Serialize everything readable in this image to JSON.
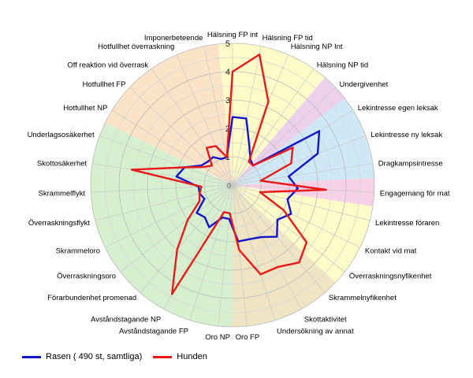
{
  "chart_data": {
    "type": "radar",
    "r_max": 5,
    "r_ticks": [
      "1",
      "2",
      "3",
      "4",
      "5"
    ],
    "categories": [
      "Hälsning FP int",
      "Hälsning FP tid",
      "Hälsning NP Int",
      "Hälsning NP tid",
      "Undergivenhet",
      "Lekintresse egen leksak",
      "Lekintresse ny leksak",
      "Dragkampsintresse",
      "Engagemang för mat",
      "Lekintresse föraren",
      "Kontakt vid mat",
      "Överraskningsnyfikenhet",
      "Skrammelnyfikenhet",
      "Skottaktivitet",
      "Undersökning av annat",
      "Oro FP",
      "Oro NP",
      "Avståndstagande FP",
      "Avståndstagande NP",
      "Förarbundenhet promenad",
      "Överraskningsoro",
      "Skrammeloro",
      "Överraskningsflykt",
      "Skrammelflykt",
      "Skottosäkerhet",
      "Underlagsosäkerhet",
      "Hotfullhet NP",
      "Hotfullhet FP",
      "Off reaktion vid överrask",
      "Hotfullhet överraskning",
      "Imponerbeteende"
    ],
    "sectors": [
      {
        "from": 0,
        "to": 3,
        "color": "#fdfbc8"
      },
      {
        "from": 4,
        "to": 4,
        "color": "#ecd0ec"
      },
      {
        "from": 5,
        "to": 7,
        "color": "#cfe8f5"
      },
      {
        "from": 8,
        "to": 8,
        "color": "#f7d2e6"
      },
      {
        "from": 9,
        "to": 11,
        "color": "#fdfbc8"
      },
      {
        "from": 12,
        "to": 15,
        "color": "#efe5c4"
      },
      {
        "from": 16,
        "to": 25,
        "color": "#d6f0cf"
      },
      {
        "from": 26,
        "to": 30,
        "color": "#fbe3c7"
      }
    ],
    "series": [
      {
        "name": "Rasen ( 490 st, samtliga)",
        "color": "#1414c8",
        "values": [
          2.4,
          2.4,
          1.5,
          1.1,
          1.0,
          3.6,
          3.2,
          2.0,
          2.3,
          2.0,
          2.3,
          2.0,
          2.4,
          2.1,
          2.0,
          2.0,
          1.2,
          1.2,
          1.7,
          1.5,
          1.6,
          1.1,
          1.2,
          1.2,
          2.0,
          1.8,
          1.3,
          1.2,
          1.2,
          1.0,
          1.0
        ]
      },
      {
        "name": "Hunden",
        "color": "#e81a1a",
        "values": [
          4.0,
          4.7,
          3.2,
          1.0,
          1.0,
          2.5,
          2.2,
          1.0,
          3.3,
          1.0,
          2.0,
          3.3,
          3.6,
          3.3,
          3.3,
          2.3,
          1.0,
          1.0,
          4.4,
          3.0,
          2.0,
          1.3,
          1.2,
          1.1,
          3.6,
          1.8,
          1.2,
          1.0,
          1.6,
          1.5,
          1.0
        ]
      }
    ]
  }
}
